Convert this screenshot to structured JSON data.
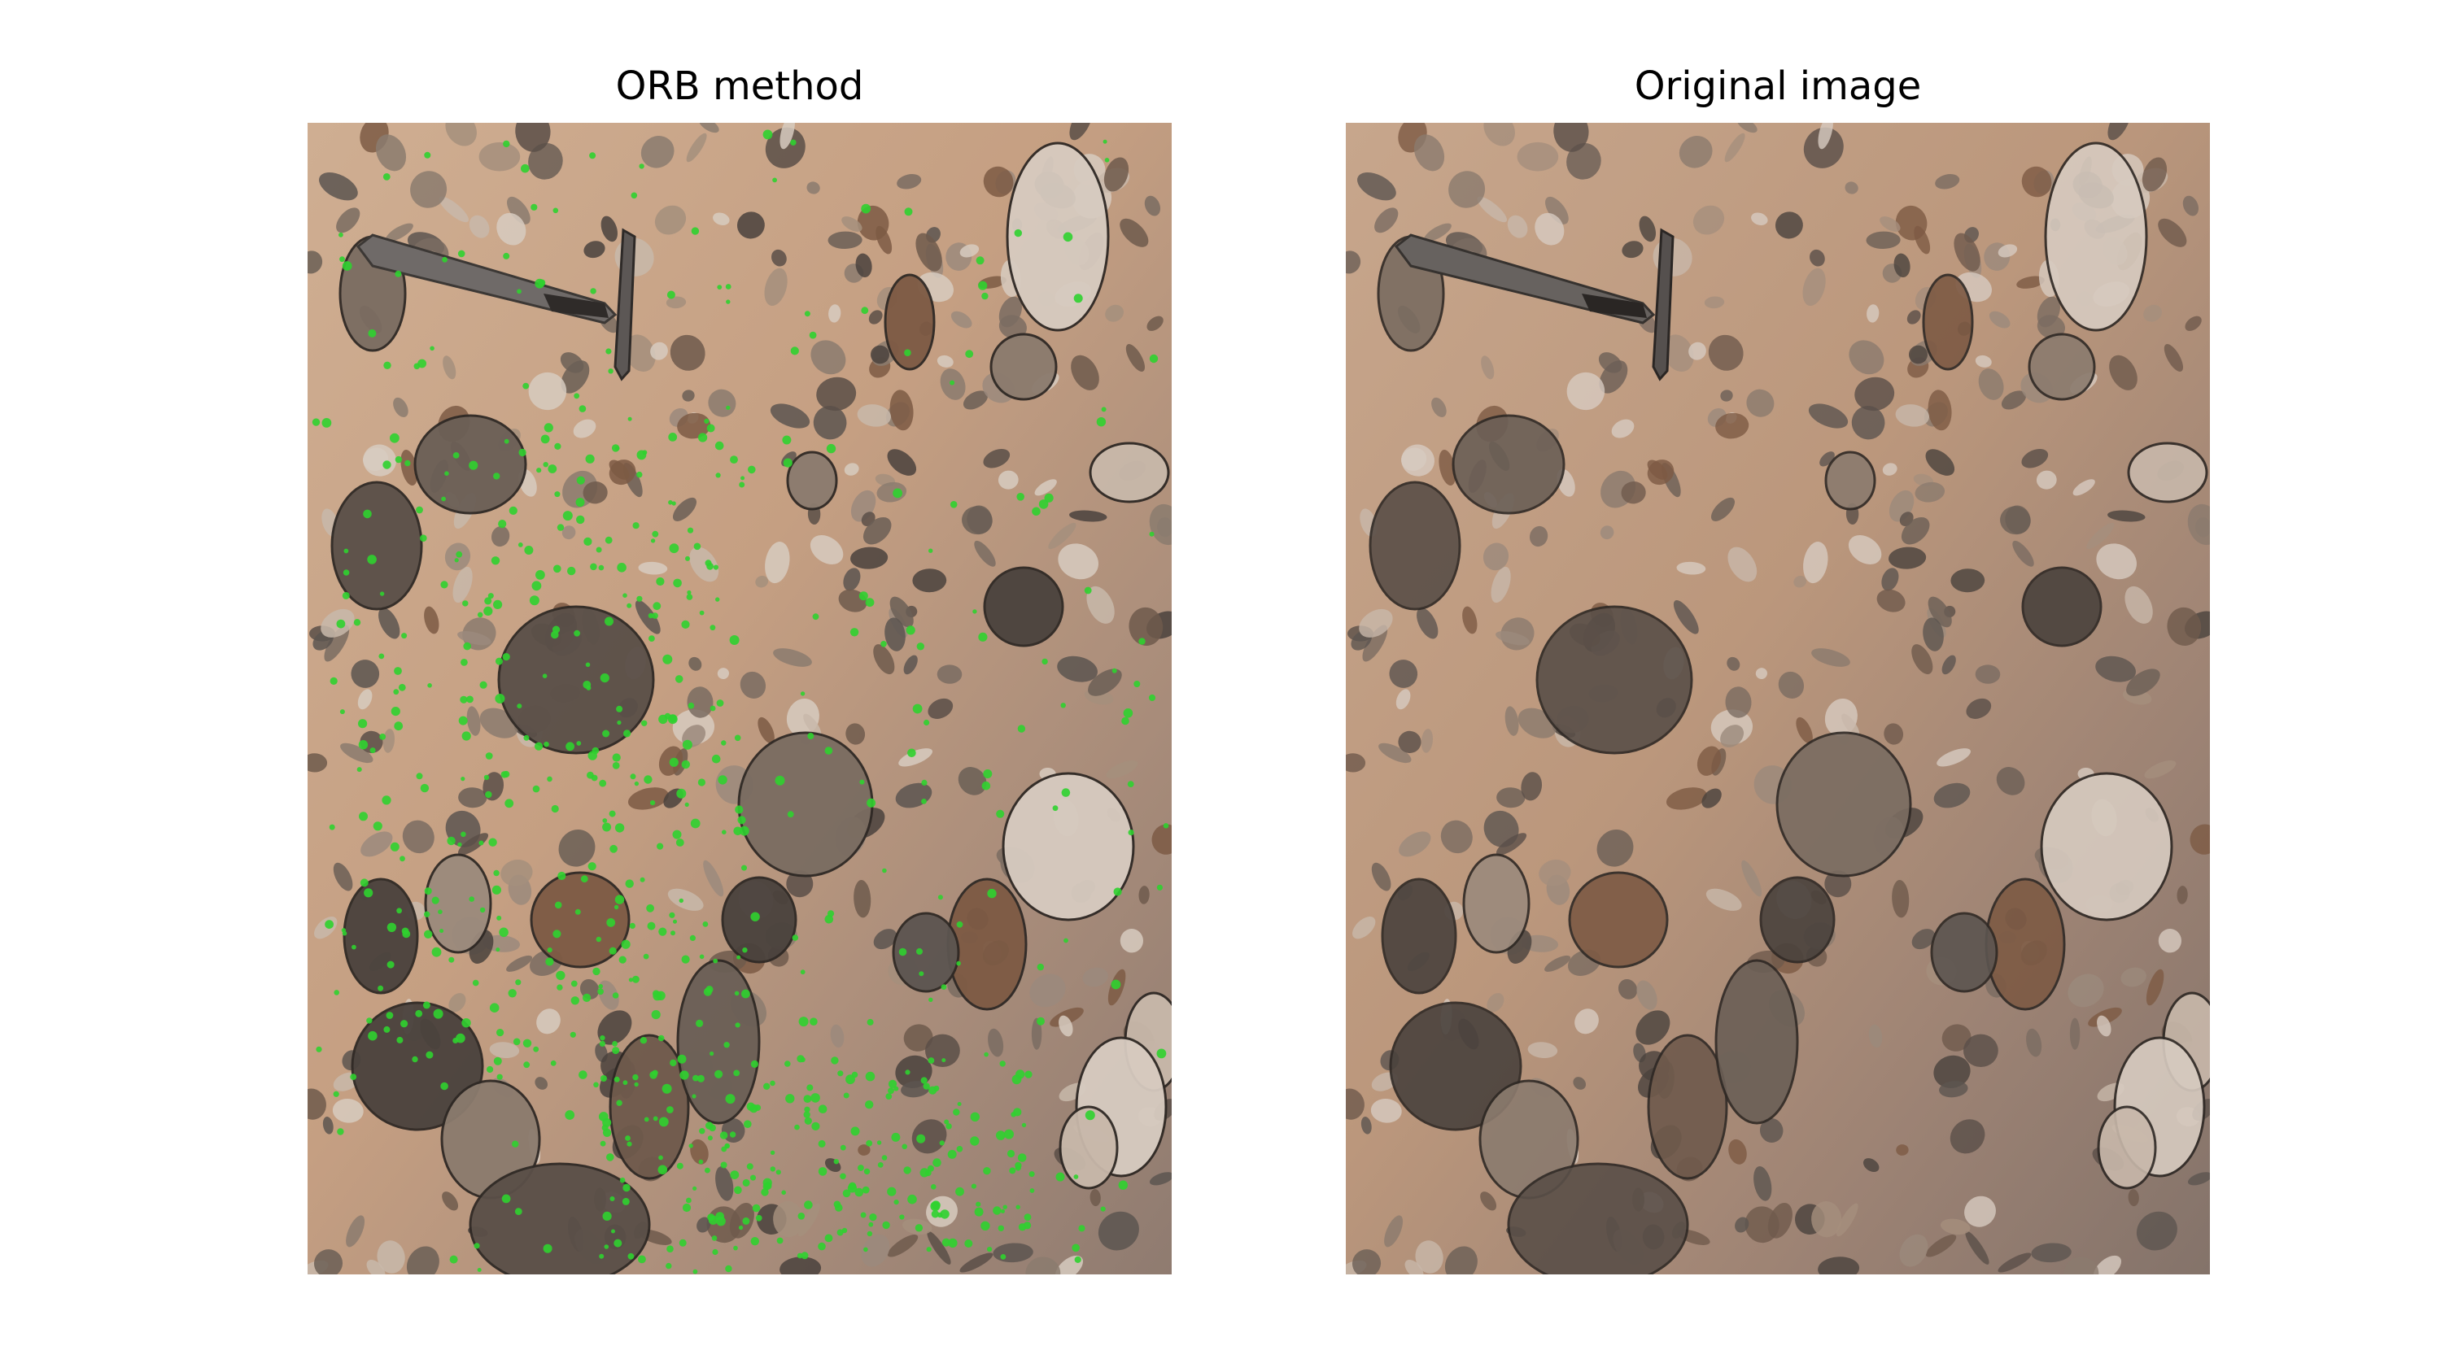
{
  "figure": {
    "panels": [
      {
        "title": "ORB method",
        "keypoint_color": "#2fd12f"
      },
      {
        "title": "Original image"
      }
    ]
  },
  "image": {
    "subject": "conglomerate rock face with geological hammer",
    "matrix_color": "#c9a78b",
    "cobble_color": "#5e534b",
    "hammer_color": "#6b6766"
  }
}
